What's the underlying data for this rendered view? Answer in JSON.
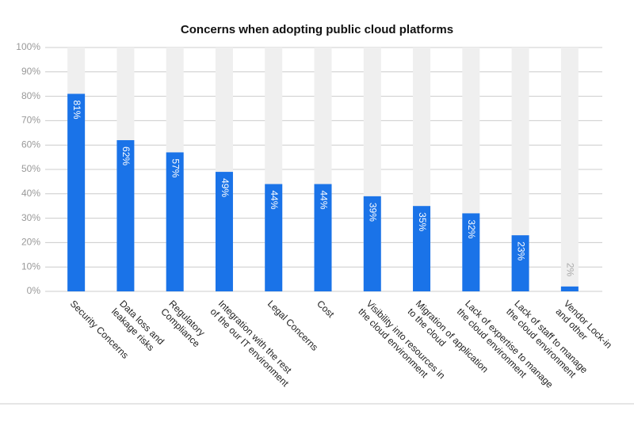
{
  "chart_data": {
    "type": "bar",
    "title": "Concerns when adopting public cloud platforms",
    "categories": [
      "Security Concerns",
      "Data loss and\nleakage risks",
      "Regulatory\nCompliance",
      "Integration with the rest\nof the our IT environment",
      "Legal Concerns",
      "Cost",
      "Visibility into resources in\nthe cloud environment",
      "Migration of application\nto the cloud",
      "Lack of expertise to manage\nthe cloud environment",
      "Lack of staff to manage\nthe cloud environment",
      "Vendor Lock-in\nand other"
    ],
    "values": [
      81,
      62,
      57,
      49,
      44,
      44,
      39,
      35,
      32,
      23,
      2
    ],
    "value_labels": [
      "81%",
      "62%",
      "57%",
      "49%",
      "44%",
      "44%",
      "39%",
      "35%",
      "32%",
      "23%",
      "2%"
    ],
    "color": "#1a73e8",
    "ylim": [
      0,
      100
    ],
    "yticks": [
      {
        "value": 0,
        "label": "0%"
      },
      {
        "value": 10,
        "label": "10%"
      },
      {
        "value": 20,
        "label": "20%"
      },
      {
        "value": 30,
        "label": "30%"
      },
      {
        "value": 40,
        "label": "40%"
      },
      {
        "value": 50,
        "label": "50%"
      },
      {
        "value": 60,
        "label": "60%"
      },
      {
        "value": 70,
        "label": "70%"
      },
      {
        "value": 80,
        "label": "80%"
      },
      {
        "value": 90,
        "label": "90%"
      },
      {
        "value": 100,
        "label": "100%"
      }
    ],
    "grid": true
  }
}
